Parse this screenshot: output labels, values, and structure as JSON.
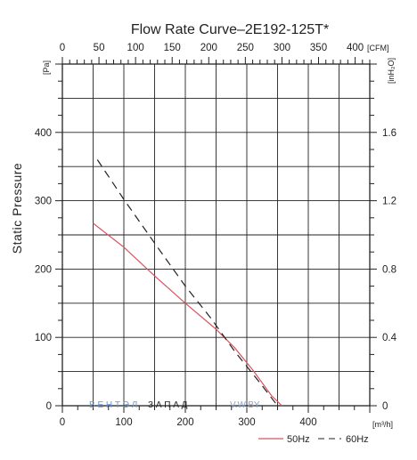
{
  "chart_data": {
    "type": "line",
    "title": "Flow Rate Curve–2E192-125T*",
    "ylabel": "Static Pressure",
    "x_bottom": {
      "unit": "[m³/h]",
      "range": [
        0,
        500
      ],
      "ticks": [
        "0",
        "100",
        "200",
        "300",
        "400"
      ]
    },
    "x_top": {
      "unit": "[CFM]",
      "range": [
        0,
        420
      ],
      "ticks": [
        "0",
        "50",
        "100",
        "150",
        "200",
        "250",
        "300",
        "350",
        "400"
      ]
    },
    "y_left": {
      "unit": "[Pa]",
      "range": [
        0,
        500
      ],
      "ticks": [
        "0",
        "100",
        "200",
        "300",
        "400"
      ]
    },
    "y_right": {
      "unit": "[inH₂O]",
      "range": [
        0,
        2.0
      ],
      "ticks": [
        "0",
        "0.4",
        "0.8",
        "1.2",
        "1.6"
      ]
    },
    "grid": true,
    "legend_position": "bottom-right",
    "series": [
      {
        "name": "50Hz",
        "color": "#d9535f",
        "dash": "solid",
        "points": [
          [
            50,
            267
          ],
          [
            100,
            232
          ],
          [
            150,
            190
          ],
          [
            200,
            150
          ],
          [
            250,
            112
          ],
          [
            280,
            85
          ],
          [
            310,
            52
          ],
          [
            340,
            15
          ],
          [
            357,
            0
          ]
        ]
      },
      {
        "name": "60Hz",
        "color": "#222222",
        "dash": "dashed",
        "points": [
          [
            57,
            360
          ],
          [
            100,
            302
          ],
          [
            150,
            238
          ],
          [
            200,
            175
          ],
          [
            240,
            130
          ],
          [
            280,
            80
          ],
          [
            320,
            35
          ],
          [
            350,
            0
          ]
        ]
      }
    ]
  },
  "watermark": {
    "brand_latin": "В Е Н Т Э Л",
    "brand_cyr": "З А П А Д",
    "site": "V.W.BY"
  }
}
